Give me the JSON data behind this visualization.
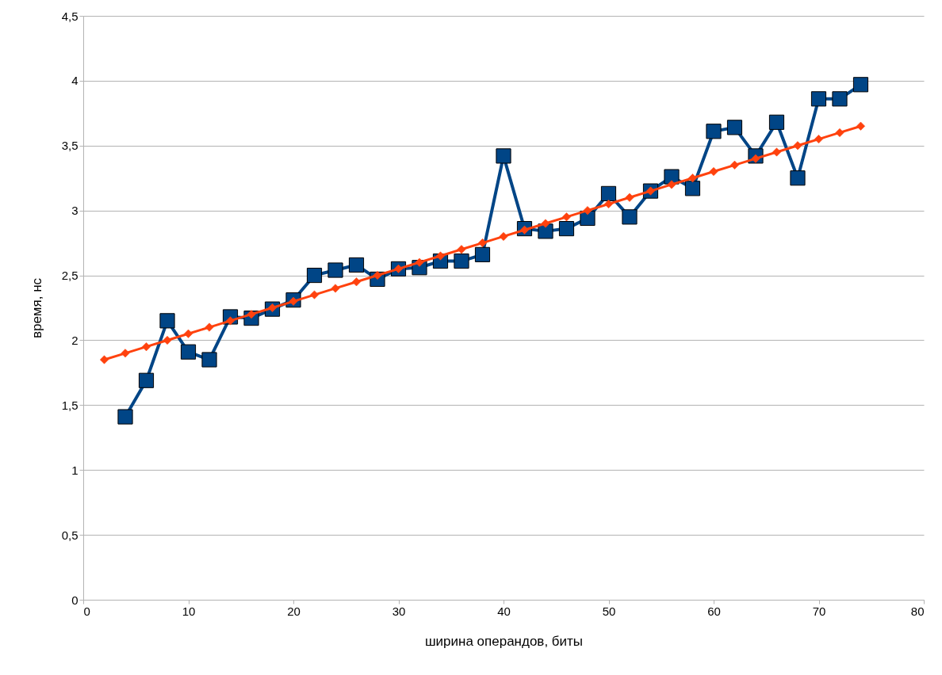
{
  "chart_data": {
    "type": "line",
    "xlabel": "ширина операндов, биты",
    "ylabel": "время, нс",
    "grid": "y",
    "xlim": [
      0,
      80
    ],
    "xticks": [
      0,
      10,
      20,
      30,
      40,
      50,
      60,
      70,
      80
    ],
    "ylim": [
      0,
      4.5
    ],
    "yticks": [
      0,
      {
        "value": 0.5,
        "label": "0,5"
      },
      1,
      {
        "value": 1.5,
        "label": "1,5"
      },
      2,
      {
        "value": 2.5,
        "label": "2,5"
      },
      3,
      {
        "value": 3.5,
        "label": "3,5"
      },
      4,
      {
        "value": 4.5,
        "label": "4,5"
      }
    ],
    "series": [
      {
        "color": "#ff420e",
        "marker": "diamond",
        "x": [
          2,
          4,
          6,
          8,
          10,
          12,
          14,
          16,
          18,
          20,
          22,
          24,
          26,
          28,
          30,
          32,
          34,
          36,
          38,
          40,
          42,
          44,
          46,
          48,
          50,
          52,
          54,
          56,
          58,
          60,
          62,
          64,
          66,
          68,
          70,
          72,
          74
        ],
        "values": [
          1.85,
          1.9,
          1.95,
          2.0,
          2.05,
          2.1,
          2.15,
          2.2,
          2.25,
          2.3,
          2.35,
          2.4,
          2.45,
          2.5,
          2.55,
          2.6,
          2.65,
          2.7,
          2.75,
          2.8,
          2.85,
          2.9,
          2.95,
          3.0,
          3.05,
          3.1,
          3.15,
          3.2,
          3.25,
          3.3,
          3.35,
          3.4,
          3.45,
          3.5,
          3.55,
          3.6,
          3.65
        ]
      },
      {
        "color": "#004586",
        "marker": "square",
        "x": [
          4,
          6,
          8,
          10,
          12,
          14,
          16,
          18,
          20,
          22,
          24,
          26,
          28,
          30,
          32,
          34,
          36,
          38,
          40,
          42,
          44,
          46,
          48,
          50,
          52,
          54,
          56,
          58,
          60,
          62,
          64,
          66,
          68,
          70,
          72,
          74
        ],
        "values": [
          1.41,
          1.69,
          2.15,
          1.91,
          1.85,
          2.18,
          2.17,
          2.24,
          2.31,
          2.5,
          2.54,
          2.58,
          2.47,
          2.55,
          2.56,
          2.61,
          2.61,
          2.66,
          3.42,
          2.86,
          2.84,
          2.86,
          2.94,
          3.13,
          2.95,
          3.15,
          3.26,
          3.17,
          3.61,
          3.64,
          3.42,
          3.68,
          3.25,
          3.86,
          3.86,
          3.97
        ]
      }
    ]
  }
}
